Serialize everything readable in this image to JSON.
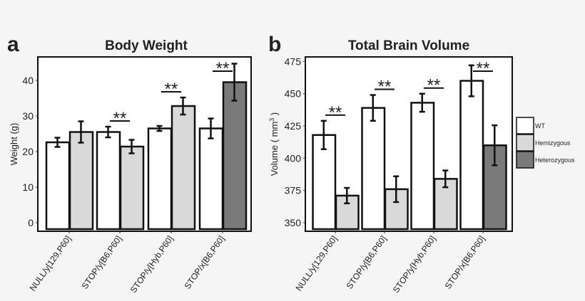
{
  "chart_data": [
    {
      "type": "bar",
      "panel_label": "a",
      "title": "Body Weight",
      "xlabel": "",
      "ylabel": "Weight (g)",
      "ylim": [
        0,
        46
      ],
      "yticks": [
        0,
        10,
        20,
        30,
        40
      ],
      "categories": [
        "NULL/y[129,P60]",
        "STOP/y[B6,P60]",
        "STOP/y[Hyb,P60]",
        "STOP/x[B6,P60]"
      ],
      "bars": [
        [
          {
            "group": "WT",
            "value": 22.6,
            "error": 1.3
          },
          {
            "group": "Hemizygous",
            "value": 25.5,
            "error": 3.0
          }
        ],
        [
          {
            "group": "WT",
            "value": 25.5,
            "error": 1.5
          },
          {
            "group": "Hemizygous",
            "value": 21.4,
            "error": 1.9
          }
        ],
        [
          {
            "group": "WT",
            "value": 26.5,
            "error": 0.7
          },
          {
            "group": "Hemizygous",
            "value": 32.8,
            "error": 2.4
          }
        ],
        [
          {
            "group": "WT",
            "value": 26.5,
            "error": 2.8
          },
          {
            "group": "Heterozygous",
            "value": 39.5,
            "error": 5.2
          }
        ]
      ],
      "significance": [
        "",
        "**",
        "**",
        "**"
      ],
      "grid": false
    },
    {
      "type": "bar",
      "panel_label": "b",
      "title": "Total Brain Volume",
      "xlabel": "",
      "ylabel": "Volume ( mm",
      "ylabel_superscript": "3",
      "ylabel_suffix": " )",
      "ylim": [
        344,
        479
      ],
      "yticks": [
        350,
        375,
        400,
        425,
        450,
        475
      ],
      "categories": [
        "NULL/y[129,P60]",
        "STOP/y[B6,P60]",
        "STOP/y[Hyb,P60]",
        "STOP/x[B6,P60]"
      ],
      "bars": [
        [
          {
            "group": "WT",
            "value": 418,
            "error": 11
          },
          {
            "group": "Hemizygous",
            "value": 371,
            "error": 6
          }
        ],
        [
          {
            "group": "WT",
            "value": 439,
            "error": 10
          },
          {
            "group": "Hemizygous",
            "value": 376,
            "error": 10
          }
        ],
        [
          {
            "group": "WT",
            "value": 443,
            "error": 7
          },
          {
            "group": "Hemizygous",
            "value": 384,
            "error": 6.5
          }
        ],
        [
          {
            "group": "WT",
            "value": 460,
            "error": 12
          },
          {
            "group": "Heterozygous",
            "value": 410,
            "error": 15.5
          }
        ]
      ],
      "significance": [
        "**",
        "**",
        "**",
        "**"
      ],
      "grid": false
    }
  ],
  "legend": {
    "placement": "right",
    "entries": [
      "WT",
      "Hemizygous",
      "Heterozygous"
    ],
    "colors": {
      "WT": "#ffffff",
      "Hemizygous": "#d9d9d9",
      "Heterozygous": "#7a7a7a"
    }
  }
}
